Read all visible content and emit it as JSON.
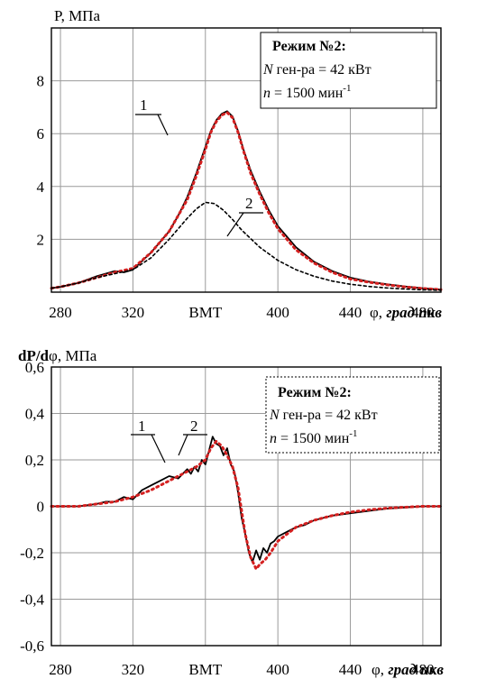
{
  "chart_data": [
    {
      "type": "line",
      "ylabel": "P, МПа",
      "xlabel": "φ, град пкв",
      "xlim": [
        275,
        490
      ],
      "ylim": [
        0,
        10
      ],
      "x_ticks": [
        "280",
        "320",
        "ВМТ",
        "400",
        "440",
        "480"
      ],
      "x_tick_values": [
        280,
        320,
        360,
        400,
        440,
        480
      ],
      "y_ticks": [
        "2",
        "4",
        "6",
        "8"
      ],
      "y_tick_values": [
        2,
        4,
        6,
        8
      ],
      "grid": true,
      "legend": {
        "title": "Режим №2:",
        "line1_var": "N",
        "line1_text": " ген-ра = 42 кВт",
        "line2_var": "n",
        "line2_text": " = 1500 мин",
        "line2_sup": "-1"
      },
      "annotations": [
        "1",
        "2"
      ],
      "series": [
        {
          "label": "1",
          "color": "#000000",
          "style": "solid",
          "x": [
            275,
            280,
            290,
            300,
            305,
            310,
            315,
            320,
            330,
            340,
            345,
            350,
            355,
            360,
            363,
            366,
            369,
            372,
            375,
            378,
            381,
            385,
            390,
            395,
            400,
            410,
            420,
            430,
            440,
            450,
            460,
            470,
            480,
            490
          ],
          "y": [
            0.15,
            0.2,
            0.35,
            0.6,
            0.7,
            0.8,
            0.75,
            0.85,
            1.5,
            2.3,
            2.9,
            3.6,
            4.5,
            5.5,
            6.1,
            6.5,
            6.75,
            6.85,
            6.65,
            6.1,
            5.4,
            4.6,
            3.8,
            3.1,
            2.5,
            1.7,
            1.15,
            0.8,
            0.55,
            0.4,
            0.3,
            0.22,
            0.15,
            0.1
          ]
        },
        {
          "label": "red-dotted",
          "color": "#d42020",
          "style": "dotted",
          "x": [
            275,
            280,
            290,
            300,
            310,
            320,
            330,
            340,
            350,
            355,
            360,
            363,
            366,
            369,
            372,
            375,
            378,
            381,
            385,
            390,
            395,
            400,
            410,
            420,
            430,
            440,
            450,
            460,
            470,
            480,
            490
          ],
          "y": [
            0.15,
            0.2,
            0.35,
            0.55,
            0.75,
            0.9,
            1.5,
            2.3,
            3.5,
            4.4,
            5.4,
            6.05,
            6.45,
            6.7,
            6.8,
            6.6,
            6.05,
            5.35,
            4.5,
            3.7,
            3.0,
            2.4,
            1.6,
            1.1,
            0.75,
            0.5,
            0.38,
            0.28,
            0.2,
            0.14,
            0.1
          ]
        },
        {
          "label": "2",
          "color": "#000000",
          "style": "dashed",
          "x": [
            275,
            280,
            290,
            300,
            310,
            320,
            330,
            340,
            350,
            355,
            360,
            365,
            370,
            375,
            380,
            390,
            400,
            410,
            420,
            430,
            440,
            450,
            460,
            470,
            480,
            490
          ],
          "y": [
            0.15,
            0.2,
            0.35,
            0.55,
            0.7,
            0.85,
            1.3,
            2.0,
            2.8,
            3.15,
            3.4,
            3.35,
            3.1,
            2.75,
            2.35,
            1.7,
            1.2,
            0.85,
            0.6,
            0.42,
            0.3,
            0.22,
            0.16,
            0.12,
            0.09,
            0.07
          ]
        }
      ]
    },
    {
      "type": "line",
      "ylabel_bold": "dP/d",
      "ylabel_rest": "φ, МПа",
      "xlabel": "φ, град пкв",
      "xlim": [
        275,
        490
      ],
      "ylim": [
        -0.6,
        0.6
      ],
      "x_ticks": [
        "280",
        "320",
        "ВМТ",
        "400",
        "440",
        "480"
      ],
      "x_tick_values": [
        280,
        320,
        360,
        400,
        440,
        480
      ],
      "y_ticks": [
        "0,6",
        "0,4",
        "0,2",
        "0",
        "-0,2",
        "-0,4",
        "-0,6"
      ],
      "y_tick_values": [
        0.6,
        0.4,
        0.2,
        0,
        -0.2,
        -0.4,
        -0.6
      ],
      "grid": true,
      "legend": {
        "title": "Режим №2:",
        "line1_var": "N",
        "line1_text": " ген-ра = 42 кВт",
        "line2_var": "n",
        "line2_text": " = 1500 мин",
        "line2_sup": "-1"
      },
      "annotations": [
        "1",
        "2"
      ],
      "series": [
        {
          "label": "1",
          "color": "#000000",
          "style": "solid",
          "x": [
            275,
            290,
            300,
            305,
            310,
            315,
            320,
            325,
            330,
            335,
            340,
            345,
            350,
            352,
            354,
            356,
            358,
            360,
            362,
            364,
            366,
            368,
            370,
            372,
            374,
            376,
            378,
            380,
            382,
            384,
            386,
            388,
            390,
            392,
            394,
            396,
            398,
            400,
            405,
            410,
            415,
            420,
            425,
            430,
            440,
            450,
            460,
            470,
            480,
            490
          ],
          "y": [
            0.0,
            0.0,
            0.01,
            0.02,
            0.02,
            0.04,
            0.03,
            0.07,
            0.09,
            0.11,
            0.13,
            0.12,
            0.16,
            0.14,
            0.17,
            0.15,
            0.2,
            0.18,
            0.24,
            0.3,
            0.27,
            0.26,
            0.22,
            0.25,
            0.18,
            0.15,
            0.06,
            -0.05,
            -0.12,
            -0.2,
            -0.24,
            -0.19,
            -0.23,
            -0.18,
            -0.2,
            -0.16,
            -0.15,
            -0.13,
            -0.11,
            -0.09,
            -0.08,
            -0.06,
            -0.05,
            -0.04,
            -0.03,
            -0.02,
            -0.01,
            -0.005,
            0.0,
            0.0
          ]
        },
        {
          "label": "2",
          "color": "#d42020",
          "style": "dotted",
          "x": [
            275,
            290,
            300,
            310,
            320,
            330,
            340,
            345,
            350,
            355,
            360,
            363,
            366,
            369,
            372,
            375,
            378,
            380,
            382,
            385,
            388,
            390,
            393,
            396,
            400,
            405,
            410,
            420,
            430,
            440,
            450,
            460,
            470,
            480,
            490
          ],
          "y": [
            0.0,
            0.0,
            0.01,
            0.02,
            0.04,
            0.07,
            0.11,
            0.13,
            0.15,
            0.17,
            0.2,
            0.25,
            0.28,
            0.26,
            0.22,
            0.17,
            0.08,
            -0.02,
            -0.12,
            -0.22,
            -0.27,
            -0.25,
            -0.23,
            -0.2,
            -0.15,
            -0.12,
            -0.09,
            -0.06,
            -0.04,
            -0.025,
            -0.015,
            -0.008,
            -0.004,
            0.0,
            0.0
          ]
        }
      ]
    }
  ]
}
